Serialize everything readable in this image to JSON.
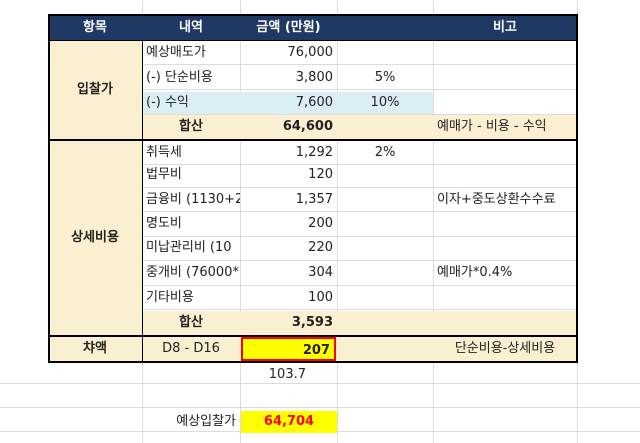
{
  "header": {
    "col_item": "항목",
    "col_detail": "내역",
    "col_amount": "금액 (만원)",
    "col_note": "비고"
  },
  "groups": {
    "bid": "입찰가",
    "details": "상세비용",
    "diff": "챠액"
  },
  "rows": [
    {
      "detail": "예상매도가",
      "amount": "76,000",
      "pct": "",
      "note": ""
    },
    {
      "detail": "(-) 단순비용",
      "amount": "3,800",
      "pct": "5%",
      "note": ""
    },
    {
      "detail": "(-) 수익",
      "amount": "7,600",
      "pct": "10%",
      "note": ""
    },
    {
      "detail": "합산",
      "amount": "64,600",
      "pct": "",
      "note": "예매가 - 비용 - 수익"
    },
    {
      "detail": "취득세",
      "amount": "1,292",
      "pct": "2%",
      "note": ""
    },
    {
      "detail": "법무비",
      "amount": "120",
      "pct": "",
      "note": ""
    },
    {
      "detail": "금융비 (1130+2",
      "amount": "1,357",
      "pct": "",
      "note": "이자+중도상환수수료"
    },
    {
      "detail": "명도비",
      "amount": "200",
      "pct": "",
      "note": ""
    },
    {
      "detail": "미납관리비 (10",
      "amount": "220",
      "pct": "",
      "note": ""
    },
    {
      "detail": "중개비 (76000*",
      "amount": "304",
      "pct": "",
      "note": "예매가*0.4%"
    },
    {
      "detail": "기타비용",
      "amount": "100",
      "pct": "",
      "note": ""
    },
    {
      "detail": "합산",
      "amount": "3,593",
      "pct": "",
      "note": ""
    },
    {
      "detail": "D8 - D16",
      "amount": "207",
      "pct": "",
      "note": "단순비용-상세비용"
    }
  ],
  "extra": {
    "value_below": "103.7",
    "expected_bid_label": "예상입찰가",
    "expected_bid_value": "64,704"
  },
  "colors": {
    "header_bg": "#1f3864",
    "beige": "#fbefd2",
    "light_blue": "#dbeef3",
    "highlight": "#ffff00",
    "red_text": "#ff0000"
  }
}
